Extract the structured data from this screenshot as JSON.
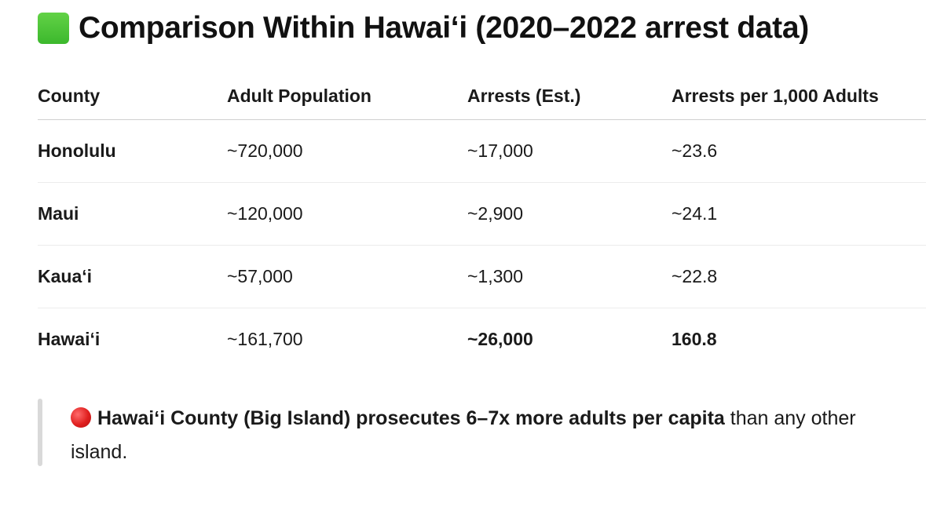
{
  "heading": {
    "icon": "green-square-icon",
    "icon_color": "#3cb82d",
    "text": "Comparison Within Hawaiʻi (2020–2022 arrest data)"
  },
  "table": {
    "headers": [
      "County",
      "Adult Population",
      "Arrests (Est.)",
      "Arrests per 1,000 Adults"
    ],
    "rows": [
      [
        "Honolulu",
        "~720,000",
        "~17,000",
        "~23.6"
      ],
      [
        "Maui",
        "~120,000",
        "~2,900",
        "~24.1"
      ],
      [
        "Kauaʻi",
        "~57,000",
        "~1,300",
        "~22.8"
      ],
      [
        "Hawaiʻi",
        "~161,700",
        "~26,000",
        "160.8"
      ]
    ]
  },
  "callout": {
    "icon": "red-circle-icon",
    "icon_color": "#e0201f",
    "bold_text": "Hawaiʻi County (Big Island) prosecutes 6–7x more adults per capita",
    "rest_text": " than any other island."
  }
}
